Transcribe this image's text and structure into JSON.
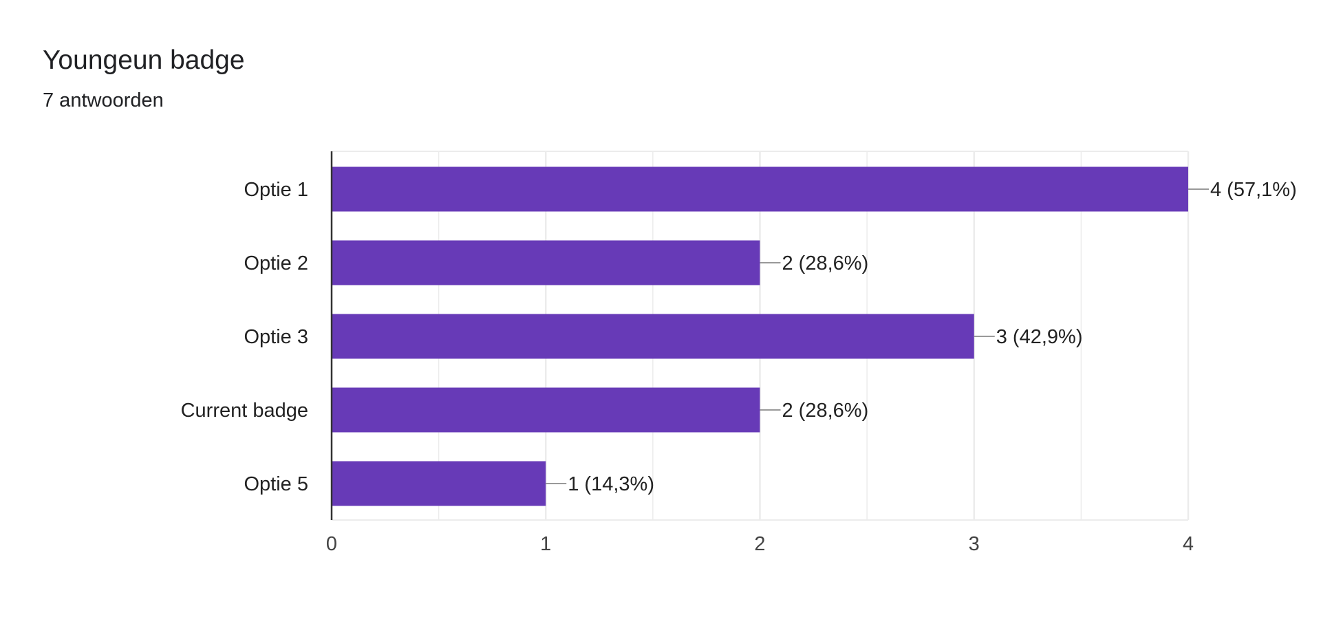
{
  "header": {
    "title": "Youngeun badge",
    "subtitle": "7 antwoorden"
  },
  "chart_data": {
    "type": "bar",
    "orientation": "horizontal",
    "categories": [
      "Optie 1",
      "Optie 2",
      "Optie 3",
      "Current badge",
      "Optie 5"
    ],
    "values": [
      4,
      2,
      3,
      2,
      1
    ],
    "data_labels": [
      "4 (57,1%)",
      "2 (28,6%)",
      "3 (42,9%)",
      "2 (28,6%)",
      "1 (14,3%)"
    ],
    "x_ticks": [
      "0",
      "1",
      "2",
      "3",
      "4"
    ],
    "xlim": [
      0,
      4
    ],
    "grid": true,
    "legend": "none",
    "colors": {
      "bar": "#673ab7",
      "axis": "#333333",
      "grid": "#ececec",
      "leader": "#999999"
    }
  }
}
